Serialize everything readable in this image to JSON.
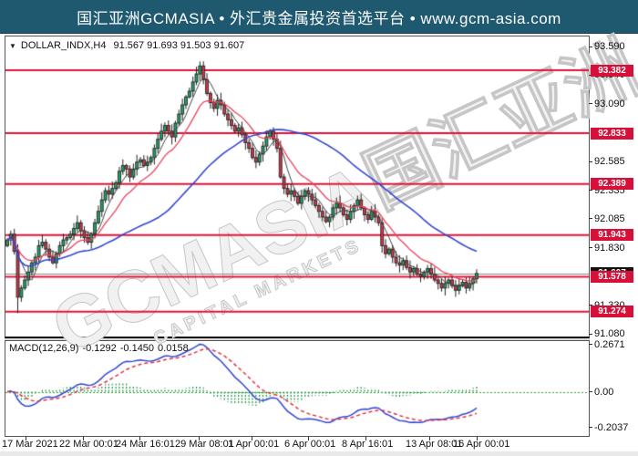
{
  "banner": {
    "text": "国汇亚洲GCMASIA • 外汇贵金属投资首选平台 • www.gcm-asia.com"
  },
  "chart": {
    "header": {
      "dropdown_icon": "▼",
      "symbol": "DOLLAR_INDX,H4",
      "ohlc_text": "91.567 91.693 91.503 91.607"
    },
    "watermark": {
      "line1": "GCMASIA国汇亚洲",
      "line2": "CAPITAL MARKETS"
    },
    "y_axis_plain": [
      "93.590",
      "93.340",
      "93.090",
      "92.585",
      "92.335",
      "92.085",
      "91.830",
      "91.330",
      "91.080"
    ],
    "y_axis_red_badges": [
      "93.382",
      "92.833",
      "92.389",
      "91.943",
      "91.578",
      "91.274"
    ],
    "y_axis_current_badge": "91.607"
  },
  "macd": {
    "label": "MACD(12,26,9)",
    "main": "-0.1292",
    "signal": "-0.1450",
    "hist": "0.0158",
    "y_labels": [
      "0.2671",
      "0.00",
      "-0.2037"
    ]
  },
  "x_axis_labels": [
    "17 Mar 2021",
    "22 Mar 00:01",
    "24 Mar 16:01",
    "29 Mar 08:01",
    "1 Apr 00:01",
    "6 Apr 00:01",
    "8 Apr 16:01",
    "13 Apr 08:01",
    "16 Apr 00:01"
  ],
  "chart_data": {
    "type": "candlestick",
    "symbol": "DOLLAR_INDX",
    "timeframe": "H4",
    "title": "DOLLAR_INDX,H4",
    "current_ohlc": {
      "open": 91.567,
      "high": 91.693,
      "low": 91.503,
      "close": 91.607
    },
    "first_open": 91.85,
    "closes": [
      91.9,
      91.95,
      91.8,
      91.4,
      91.48,
      91.55,
      91.62,
      91.7,
      91.75,
      91.85,
      91.88,
      91.82,
      91.75,
      91.7,
      91.78,
      91.85,
      91.9,
      91.92,
      91.95,
      92.0,
      92.05,
      91.98,
      91.92,
      91.88,
      91.95,
      92.05,
      92.15,
      92.25,
      92.33,
      92.3,
      92.35,
      92.4,
      92.5,
      92.55,
      92.52,
      92.45,
      92.52,
      92.58,
      92.6,
      92.55,
      92.58,
      92.62,
      92.7,
      92.78,
      92.85,
      92.9,
      92.85,
      92.8,
      92.92,
      93.0,
      93.08,
      93.15,
      93.2,
      93.28,
      93.35,
      93.42,
      93.3,
      93.18,
      93.1,
      93.05,
      93.12,
      93.08,
      93.0,
      92.95,
      92.9,
      92.85,
      92.88,
      92.82,
      92.75,
      92.7,
      92.62,
      92.58,
      92.65,
      92.72,
      92.8,
      92.85,
      92.78,
      92.7,
      92.45,
      92.35,
      92.3,
      92.33,
      92.28,
      92.22,
      92.28,
      92.33,
      92.3,
      92.25,
      92.2,
      92.15,
      92.1,
      92.06,
      92.1,
      92.18,
      92.22,
      92.18,
      92.12,
      92.08,
      92.15,
      92.2,
      92.25,
      92.18,
      92.12,
      92.08,
      92.15,
      92.1,
      92.05,
      91.85,
      91.78,
      91.82,
      91.75,
      91.7,
      91.68,
      91.72,
      91.66,
      91.62,
      91.65,
      91.6,
      91.58,
      91.62,
      91.65,
      91.6,
      91.55,
      91.52,
      91.48,
      91.52,
      91.55,
      91.5,
      91.46,
      91.5,
      91.53,
      91.48,
      91.52,
      91.56,
      91.607
    ],
    "wick_overrides": {
      "3": {
        "low": 91.26
      },
      "55": {
        "high": 93.46
      }
    },
    "red_levels": [
      93.382,
      92.833,
      92.389,
      91.943,
      91.578,
      91.274
    ],
    "current_price_line": 91.607,
    "price_axis_ticks": [
      93.59,
      93.34,
      93.09,
      92.585,
      92.335,
      92.085,
      91.83,
      91.33,
      91.08
    ],
    "visible_price_range": [
      91.05,
      93.68
    ],
    "x_tick_labels": [
      "17 Mar 2021",
      "22 Mar 00:01",
      "24 Mar 16:01",
      "29 Mar 08:01",
      "1 Apr 00:01",
      "6 Apr 00:01",
      "8 Apr 16:01",
      "13 Apr 08:01",
      "16 Apr 00:01"
    ],
    "moving_averages": [
      {
        "type": "sma",
        "period": 5,
        "color": "#444444"
      },
      {
        "type": "ema",
        "period": 13,
        "color": "#e8435a"
      },
      {
        "type": "sma",
        "period": 44,
        "color": "#3347d1"
      }
    ],
    "indicator": {
      "name": "MACD",
      "params": [
        12,
        26,
        9
      ],
      "main": -0.1292,
      "signal": -0.145,
      "histogram": 0.0158,
      "axis_ticks": [
        0.2671,
        0.0,
        -0.2037
      ]
    }
  },
  "colors": {
    "banner_bg": "#1e5970",
    "level_red": "#e81236",
    "badge_red": "#d61038",
    "badge_black": "#111111",
    "bull": "#23a067",
    "bear": "#c63b4a",
    "ma_fast": "#444444",
    "ma_mid": "#e8435a",
    "ma_slow": "#3347d1",
    "macd_main": "#3347d1",
    "macd_signal": "#e03343",
    "macd_hist": "#1f8f45",
    "gray_line": "#888888"
  }
}
